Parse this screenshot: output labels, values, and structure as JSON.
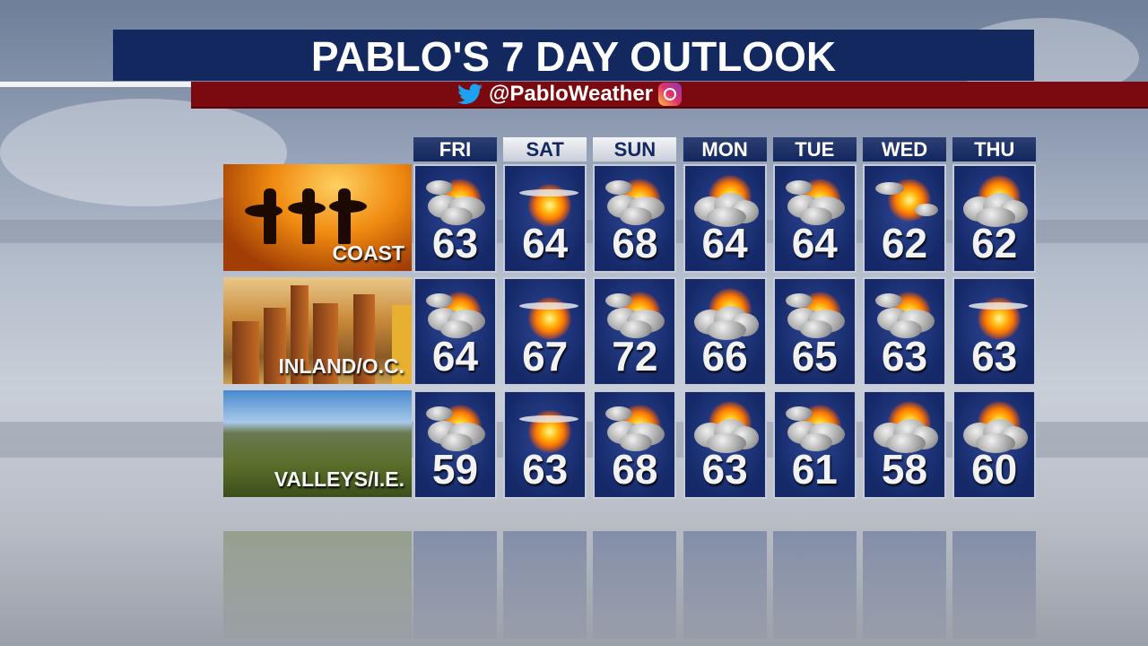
{
  "header": {
    "title": "PABLO'S 7 DAY OUTLOOK",
    "handle": "@PabloWeather",
    "icons": [
      "twitter-icon",
      "instagram-icon"
    ]
  },
  "days": [
    "FRI",
    "SAT",
    "SUN",
    "MON",
    "TUE",
    "WED",
    "THU"
  ],
  "highlighted_days": [
    "SAT",
    "SUN"
  ],
  "regions": [
    {
      "label": "COAST",
      "temps": [
        "63",
        "64",
        "68",
        "64",
        "64",
        "62",
        "62"
      ],
      "conditions": [
        "partly-cloudy",
        "hazy-sun",
        "partly-cloudy",
        "mostly-cloudy",
        "partly-cloudy",
        "sun-and-clouds",
        "mostly-cloudy"
      ]
    },
    {
      "label": "INLAND/O.C.",
      "temps": [
        "64",
        "67",
        "72",
        "66",
        "65",
        "63",
        "63"
      ],
      "conditions": [
        "partly-cloudy",
        "hazy-sun",
        "partly-cloudy",
        "mostly-cloudy",
        "partly-cloudy",
        "partly-cloudy",
        "hazy-sun"
      ]
    },
    {
      "label": "VALLEYS/I.E.",
      "temps": [
        "59",
        "63",
        "68",
        "63",
        "61",
        "58",
        "60"
      ],
      "conditions": [
        "partly-cloudy",
        "hazy-sun",
        "partly-cloudy",
        "mostly-cloudy",
        "partly-cloudy",
        "mostly-cloudy",
        "mostly-cloudy"
      ]
    }
  ],
  "colors": {
    "title_bar": "#13285e",
    "social_bar": "#7a0a10",
    "cell": "#1c3275",
    "twitter": "#1da1f2"
  }
}
